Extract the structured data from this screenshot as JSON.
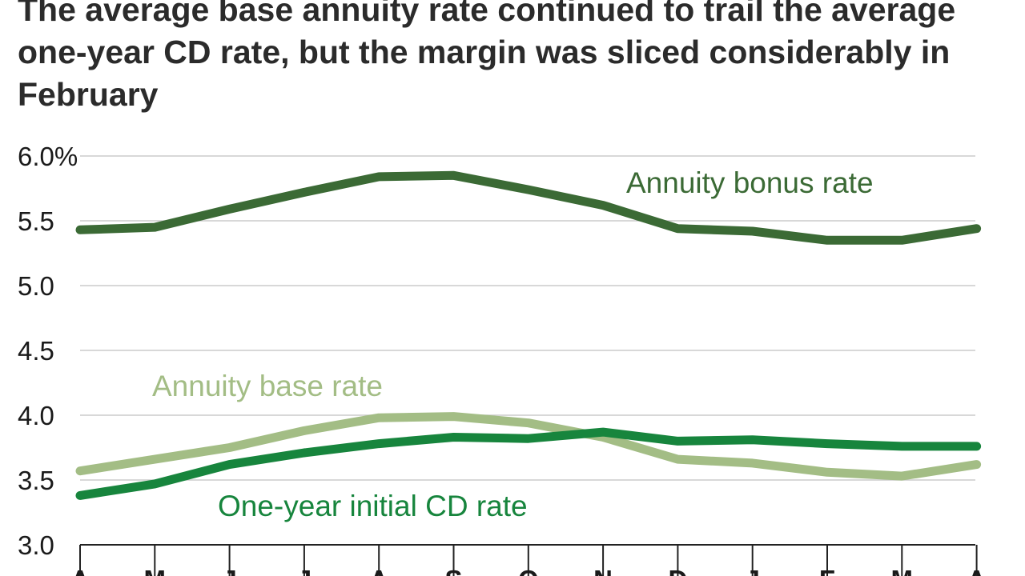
{
  "colors": {
    "bonus": "#3b6a35",
    "base": "#a3bd85",
    "cd": "#17853d",
    "grid": "#cccccc",
    "axis": "#222222",
    "title": "#2b2b2b"
  },
  "chart_data": {
    "type": "line",
    "title": "The average base annuity rate continued to trail the average one-year CD rate, but the margin was sliced considerably in February",
    "xlabel": "",
    "ylabel": "",
    "ylim": [
      3.0,
      6.0
    ],
    "yticks": [
      3.0,
      3.5,
      4.0,
      4.5,
      5.0,
      5.5,
      6.0
    ],
    "ytick_labels": [
      "3.0",
      "3.5",
      "4.0",
      "4.5",
      "5.0",
      "5.5",
      "6.0%"
    ],
    "categories": [
      "A",
      "M",
      "J",
      "J",
      "A",
      "S",
      "O",
      "N",
      "D",
      "J",
      "F",
      "M",
      "A"
    ],
    "series": [
      {
        "name": "Annuity bonus rate",
        "values": [
          5.43,
          5.45,
          5.59,
          5.72,
          5.84,
          5.85,
          5.74,
          5.62,
          5.44,
          5.42,
          5.35,
          5.35,
          5.44
        ]
      },
      {
        "name": "Annuity base rate",
        "values": [
          3.57,
          3.66,
          3.75,
          3.88,
          3.98,
          3.99,
          3.94,
          3.83,
          3.66,
          3.63,
          3.56,
          3.53,
          3.62
        ]
      },
      {
        "name": "One-year initial CD rate",
        "values": [
          3.38,
          3.47,
          3.62,
          3.71,
          3.78,
          3.83,
          3.82,
          3.87,
          3.8,
          3.81,
          3.78,
          3.76,
          3.76
        ]
      }
    ]
  }
}
